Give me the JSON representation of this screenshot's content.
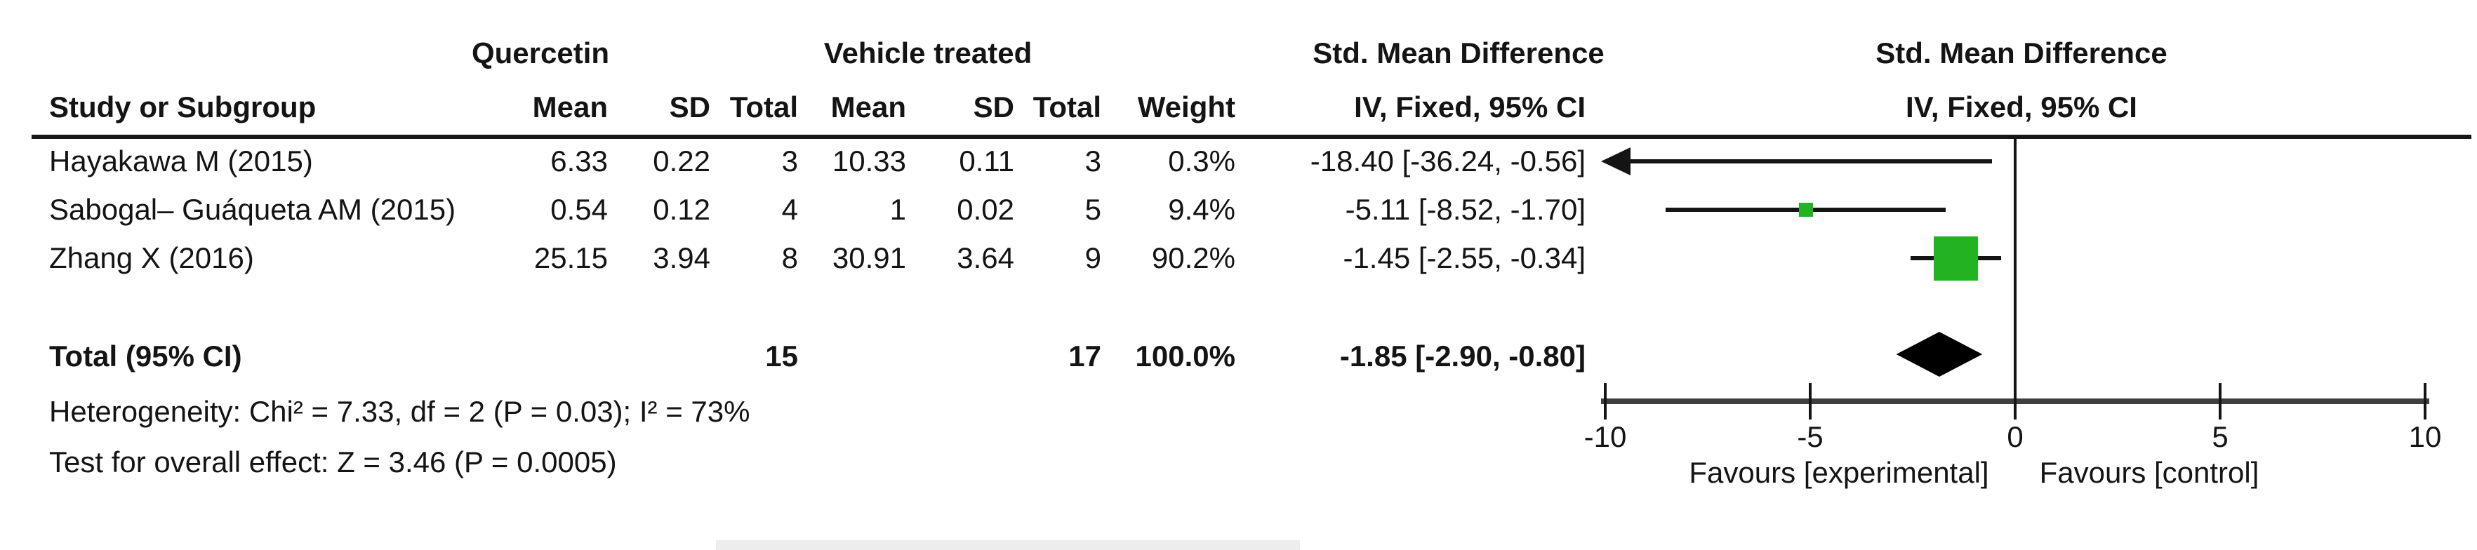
{
  "header": {
    "group1": "Quercetin",
    "group2": "Vehicle treated",
    "effect_line1": "Std. Mean Difference",
    "effect_line2": "IV, Fixed, 95% CI",
    "plot_line1": "Std. Mean Difference",
    "plot_line2": "IV, Fixed, 95% CI",
    "study_col": "Study or Subgroup",
    "mean_col": "Mean",
    "sd_col": "SD",
    "total_col": "Total",
    "weight_col": "Weight"
  },
  "studies": [
    {
      "name": "Hayakawa M (2015)",
      "mean1": "6.33",
      "sd1": "0.22",
      "n1": "3",
      "mean2": "10.33",
      "sd2": "0.11",
      "n2": "3",
      "weight": "0.3%",
      "ci_text": "-18.40 [-36.24, -0.56]"
    },
    {
      "name": "Sabogal– Guáqueta AM (2015)",
      "mean1": "0.54",
      "sd1": "0.12",
      "n1": "4",
      "mean2": "1",
      "sd2": "0.02",
      "n2": "5",
      "weight": "9.4%",
      "ci_text": "-5.11 [-8.52, -1.70]"
    },
    {
      "name": "Zhang X (2016)",
      "mean1": "25.15",
      "sd1": "3.94",
      "n1": "8",
      "mean2": "30.91",
      "sd2": "3.64",
      "n2": "9",
      "weight": "90.2%",
      "ci_text": "-1.45 [-2.55, -0.34]"
    }
  ],
  "total_row": {
    "label": "Total (95% CI)",
    "n1": "15",
    "n2": "17",
    "weight": "100.0%",
    "ci_text": "-1.85 [-2.90, -0.80]"
  },
  "footer": {
    "heterogeneity": "Heterogeneity: Chi² = 7.33, df = 2 (P = 0.03); I² = 73%",
    "overall_effect": "Test for overall effect: Z = 3.46 (P = 0.0005)"
  },
  "axis": {
    "favours_left": "Favours [experimental]",
    "favours_right": "Favours [control]"
  },
  "colors": {
    "marker_green": "#22b222",
    "line_black": "#141414",
    "axis_grey": "#3f3f3f",
    "diamond_black": "#000000"
  },
  "chart_data": {
    "type": "scatter",
    "variant": "forest-plot",
    "effect_measure": "Std. Mean Difference",
    "method": "IV, Fixed, 95% CI",
    "x_axis": {
      "min": -10,
      "max": 10,
      "ticks": [
        -10,
        -5,
        0,
        5,
        10
      ],
      "label_left": "Favours [experimental]",
      "label_right": "Favours [control]"
    },
    "studies": [
      {
        "name": "Hayakawa M (2015)",
        "est": -18.4,
        "ci_low": -36.24,
        "ci_high": -0.56,
        "weight_pct": 0.3
      },
      {
        "name": "Sabogal– Guáqueta AM (2015)",
        "est": -5.11,
        "ci_low": -8.52,
        "ci_high": -1.7,
        "weight_pct": 9.4
      },
      {
        "name": "Zhang X (2016)",
        "est": -1.45,
        "ci_low": -2.55,
        "ci_high": -0.34,
        "weight_pct": 90.2
      }
    ],
    "total": {
      "est": -1.85,
      "ci_low": -2.9,
      "ci_high": -0.8,
      "weight_pct": 100.0
    },
    "heterogeneity": {
      "chi2": 7.33,
      "df": 2,
      "p": 0.03,
      "i2_pct": 73
    },
    "overall_effect": {
      "z": 3.46,
      "p": 0.0005
    }
  }
}
